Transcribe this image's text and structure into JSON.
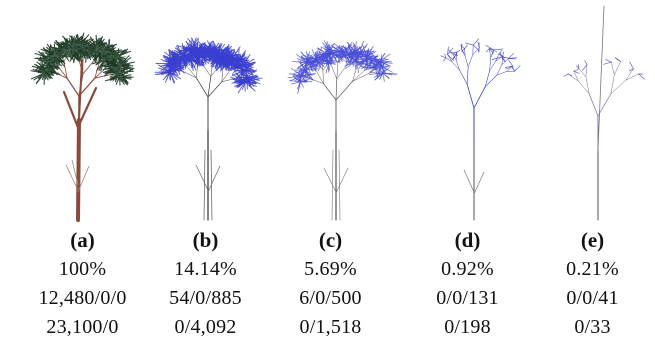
{
  "figure": {
    "panels": [
      {
        "label": "(a)",
        "percent": "100%",
        "counts_1": "12,480/0/0",
        "counts_2": "23,100/0",
        "style": "full",
        "trunk_color": "#8a4a3a",
        "foliage_color": "#1f3a26"
      },
      {
        "label": "(b)",
        "percent": "14.14%",
        "counts_1": "54/0/885",
        "counts_2": "0/4,092",
        "style": "dense-lines",
        "line_color": "#3a3fd0"
      },
      {
        "label": "(c)",
        "percent": "5.69%",
        "counts_1": "6/0/500",
        "counts_2": "0/1,518",
        "style": "medium-lines",
        "line_color": "#4a4fd8"
      },
      {
        "label": "(d)",
        "percent": "0.92%",
        "counts_1": "0/0/131",
        "counts_2": "0/198",
        "style": "sparse-lines",
        "line_color": "#3a3fc8"
      },
      {
        "label": "(e)",
        "percent": "0.21%",
        "counts_1": "0/0/41",
        "counts_2": "0/33",
        "style": "skeleton",
        "line_color": "#3b3fc0"
      }
    ]
  }
}
